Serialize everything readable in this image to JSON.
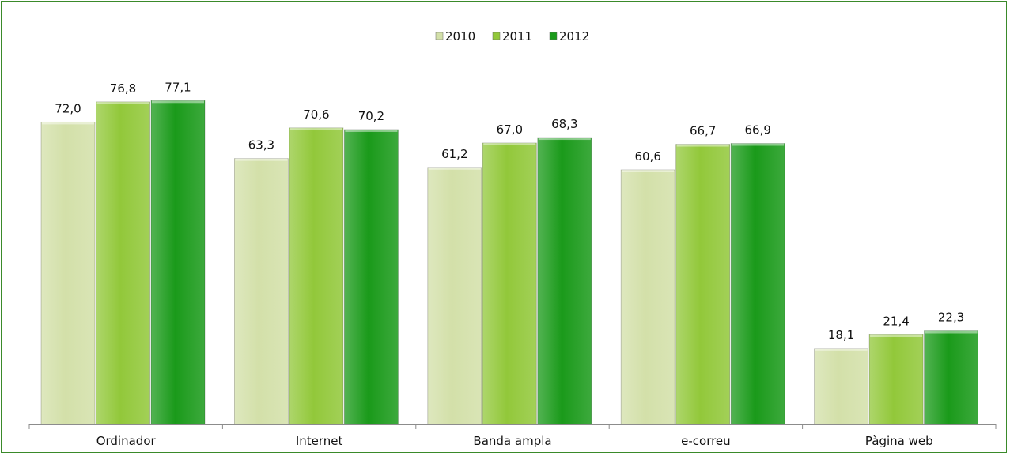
{
  "chart_data": {
    "type": "bar",
    "categories": [
      "Ordinador",
      "Internet",
      "Banda ampla",
      "e-correu",
      "Pàgina web"
    ],
    "series": [
      {
        "name": "2010",
        "values": [
          "72,0",
          "63,3",
          "61,2",
          "60,6",
          "18,1"
        ],
        "color": "#d3e0a9"
      },
      {
        "name": "2011",
        "values": [
          "76,8",
          "70,6",
          "67,0",
          "66,7",
          "21,4"
        ],
        "color": "#92c83a"
      },
      {
        "name": "2012",
        "values": [
          "77,1",
          "70,2",
          "68,3",
          "66,9",
          "22,3"
        ],
        "color": "#1a9a1a"
      }
    ],
    "ylim": [
      0,
      86
    ],
    "legend": "top-center",
    "grid": false
  }
}
